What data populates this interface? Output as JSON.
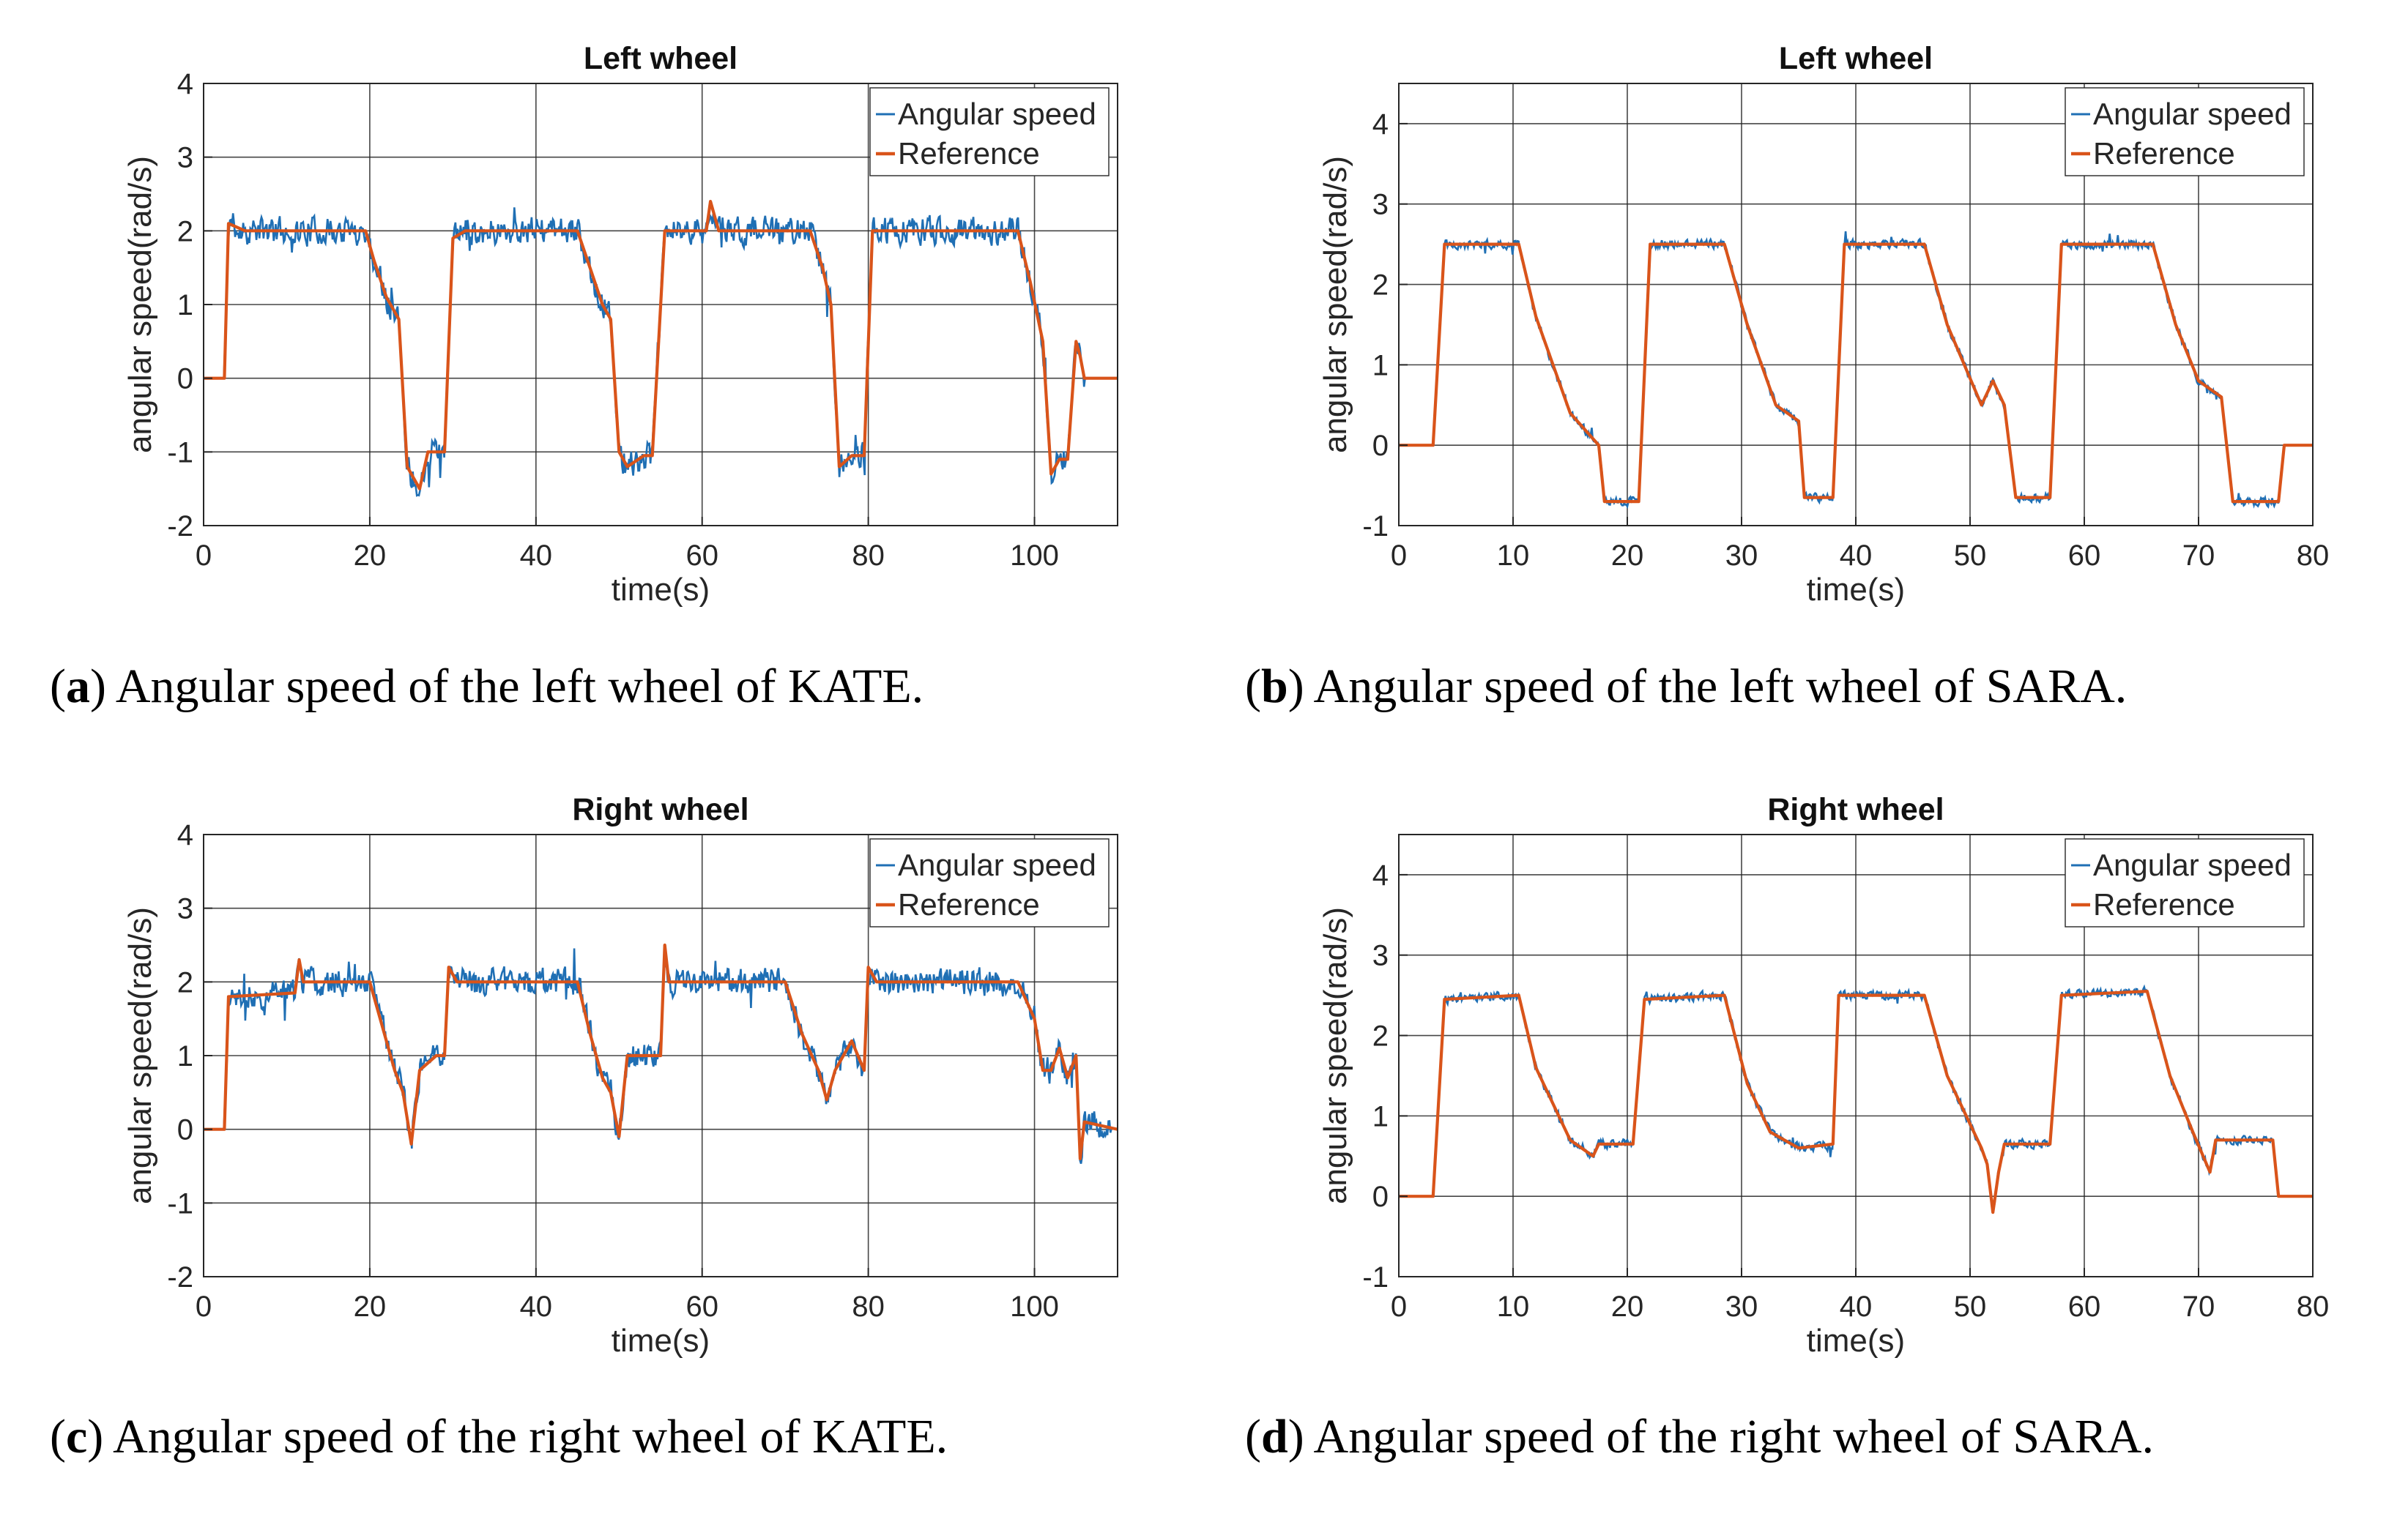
{
  "colors": {
    "signal": "#1f6fb4",
    "reference": "#d9541a",
    "grid": "#262626",
    "axis": "#262626",
    "text": "#262626"
  },
  "chart_data": [
    {
      "id": "a",
      "type": "line",
      "robot": "KATE",
      "title": "Left wheel",
      "xlabel": "time(s)",
      "ylabel": "angular speed(rad/s)",
      "xlim": [
        0,
        110
      ],
      "ylim": [
        -2,
        4
      ],
      "xticks": [
        0,
        20,
        40,
        60,
        80,
        100
      ],
      "yticks": [
        -2,
        -1,
        0,
        1,
        2,
        3,
        4
      ],
      "grid": true,
      "legend_position": "top-right",
      "caption_letter": "a",
      "caption_text": " Angular speed of the left wheel of KATE.",
      "noise": 0.17,
      "seed": 11,
      "series": [
        {
          "name": "Angular speed",
          "role": "measured"
        },
        {
          "name": "Reference",
          "role": "reference",
          "x": [
            0,
            2.5,
            3,
            5,
            19.5,
            20.5,
            22,
            23.5,
            24.5,
            26,
            27,
            29,
            30,
            31.5,
            45,
            46.5,
            48,
            49,
            50,
            51,
            53,
            54,
            55.5,
            60.5,
            61,
            62,
            73,
            74.5,
            75.5,
            76.5,
            78,
            79.5,
            80.5,
            82,
            98,
            99.5,
            101,
            102,
            103,
            104,
            105,
            105.5,
            106,
            110
          ],
          "y": [
            0,
            0,
            2.1,
            2,
            2,
            1.6,
            1.1,
            0.8,
            -1.2,
            -1.5,
            -1.0,
            -1.0,
            1.9,
            2.0,
            2.0,
            1.5,
            1.0,
            0.8,
            -1.0,
            -1.2,
            -1.05,
            -1.05,
            2.0,
            2.0,
            2.4,
            2.0,
            2.0,
            1.5,
            1.0,
            -1.2,
            -1.05,
            -1.05,
            2.0,
            2.0,
            2.0,
            1.3,
            0.5,
            -1.3,
            -1.1,
            -1.1,
            0.5,
            0.3,
            0,
            0
          ]
        }
      ]
    },
    {
      "id": "b",
      "type": "line",
      "robot": "SARA",
      "title": "Left wheel",
      "xlabel": "time(s)",
      "ylabel": "angular speed(rad/s)",
      "xlim": [
        0,
        80
      ],
      "ylim": [
        -1,
        4.5
      ],
      "xticks": [
        0,
        10,
        20,
        30,
        40,
        50,
        60,
        70,
        80
      ],
      "yticks": [
        -1,
        0,
        1,
        2,
        3,
        4
      ],
      "grid": true,
      "legend_position": "top-right",
      "caption_letter": "b",
      "caption_text": " Angular speed of the left wheel of SARA.",
      "noise": 0.05,
      "seed": 23,
      "series": [
        {
          "name": "Angular speed",
          "role": "measured"
        },
        {
          "name": "Reference",
          "role": "reference",
          "x": [
            0,
            3,
            4,
            10.5,
            12,
            15,
            17.5,
            18,
            21,
            22,
            28.5,
            30.5,
            33,
            35,
            35.5,
            38,
            39,
            46,
            48,
            51,
            52,
            53,
            54,
            57,
            58,
            66,
            68,
            70,
            72,
            73,
            77,
            77.5,
            80
          ],
          "y": [
            0,
            0,
            2.5,
            2.5,
            1.6,
            0.4,
            0,
            -0.7,
            -0.7,
            2.5,
            2.5,
            1.5,
            0.5,
            0.3,
            -0.65,
            -0.65,
            2.5,
            2.5,
            1.5,
            0.5,
            0.8,
            0.5,
            -0.65,
            -0.65,
            2.5,
            2.5,
            1.5,
            0.8,
            0.6,
            -0.7,
            -0.7,
            0,
            0
          ]
        }
      ]
    },
    {
      "id": "c",
      "type": "line",
      "robot": "KATE",
      "title": "Right wheel",
      "xlabel": "time(s)",
      "ylabel": "angular speed(rad/s)",
      "xlim": [
        0,
        110
      ],
      "ylim": [
        -2,
        4
      ],
      "xticks": [
        0,
        20,
        40,
        60,
        80,
        100
      ],
      "yticks": [
        -2,
        -1,
        0,
        1,
        2,
        3,
        4
      ],
      "grid": true,
      "legend_position": "top-right",
      "caption_letter": "c",
      "caption_text": " Angular speed of the right wheel of KATE.",
      "noise": 0.17,
      "seed": 37,
      "series": [
        {
          "name": "Angular speed",
          "role": "measured"
        },
        {
          "name": "Reference",
          "role": "reference",
          "x": [
            0,
            2.5,
            3,
            11,
            11.5,
            12,
            20,
            22,
            23,
            24,
            25,
            26,
            28,
            29,
            29.5,
            30.5,
            45,
            46.5,
            48,
            49,
            50,
            51,
            54,
            55,
            55.5,
            56,
            57,
            70,
            72,
            74,
            75,
            76,
            78,
            79.5,
            80,
            81,
            98,
            100,
            101,
            102,
            103,
            104,
            105,
            105.5,
            106,
            110
          ],
          "y": [
            0,
            0,
            1.8,
            1.85,
            2.3,
            2.0,
            2.0,
            1.2,
            0.8,
            0.5,
            -0.2,
            0.8,
            1.0,
            1.0,
            2.2,
            2.0,
            2.0,
            1.3,
            0.7,
            0.5,
            -0.1,
            1.0,
            1.0,
            1.0,
            2.5,
            2.0,
            2.0,
            2.0,
            1.3,
            0.8,
            0.4,
            0.8,
            1.2,
            0.8,
            2.2,
            2.0,
            2.0,
            1.5,
            0.8,
            0.8,
            1.1,
            0.7,
            1.0,
            -0.4,
            0.1,
            0
          ]
        }
      ]
    },
    {
      "id": "d",
      "type": "line",
      "robot": "SARA",
      "title": "Right wheel",
      "xlabel": "time(s)",
      "ylabel": "angular speed(rad/s)",
      "xlim": [
        0,
        80
      ],
      "ylim": [
        -1,
        4.5
      ],
      "xticks": [
        0,
        10,
        20,
        30,
        40,
        50,
        60,
        70,
        80
      ],
      "yticks": [
        -1,
        0,
        1,
        2,
        3,
        4
      ],
      "grid": true,
      "legend_position": "top-right",
      "caption_letter": "d",
      "caption_text": " Angular speed of the right wheel of SARA.",
      "noise": 0.05,
      "seed": 51,
      "series": [
        {
          "name": "Angular speed",
          "role": "measured"
        },
        {
          "name": "Reference",
          "role": "reference",
          "x": [
            0,
            3,
            4,
            10.5,
            12,
            15,
            17,
            17.5,
            20.5,
            21.5,
            28.5,
            30.5,
            32.5,
            35,
            38,
            38.5,
            46,
            48,
            51,
            51.5,
            52,
            52.5,
            53,
            57,
            58,
            65.5,
            67.5,
            69.5,
            71,
            71.5,
            76.5,
            77,
            80
          ],
          "y": [
            0,
            0,
            2.45,
            2.5,
            1.6,
            0.7,
            0.5,
            0.65,
            0.65,
            2.45,
            2.5,
            1.4,
            0.8,
            0.6,
            0.65,
            2.5,
            2.5,
            1.5,
            0.6,
            0.4,
            -0.2,
            0.3,
            0.65,
            0.65,
            2.5,
            2.55,
            1.5,
            0.8,
            0.3,
            0.7,
            0.7,
            0,
            0
          ]
        }
      ]
    }
  ]
}
